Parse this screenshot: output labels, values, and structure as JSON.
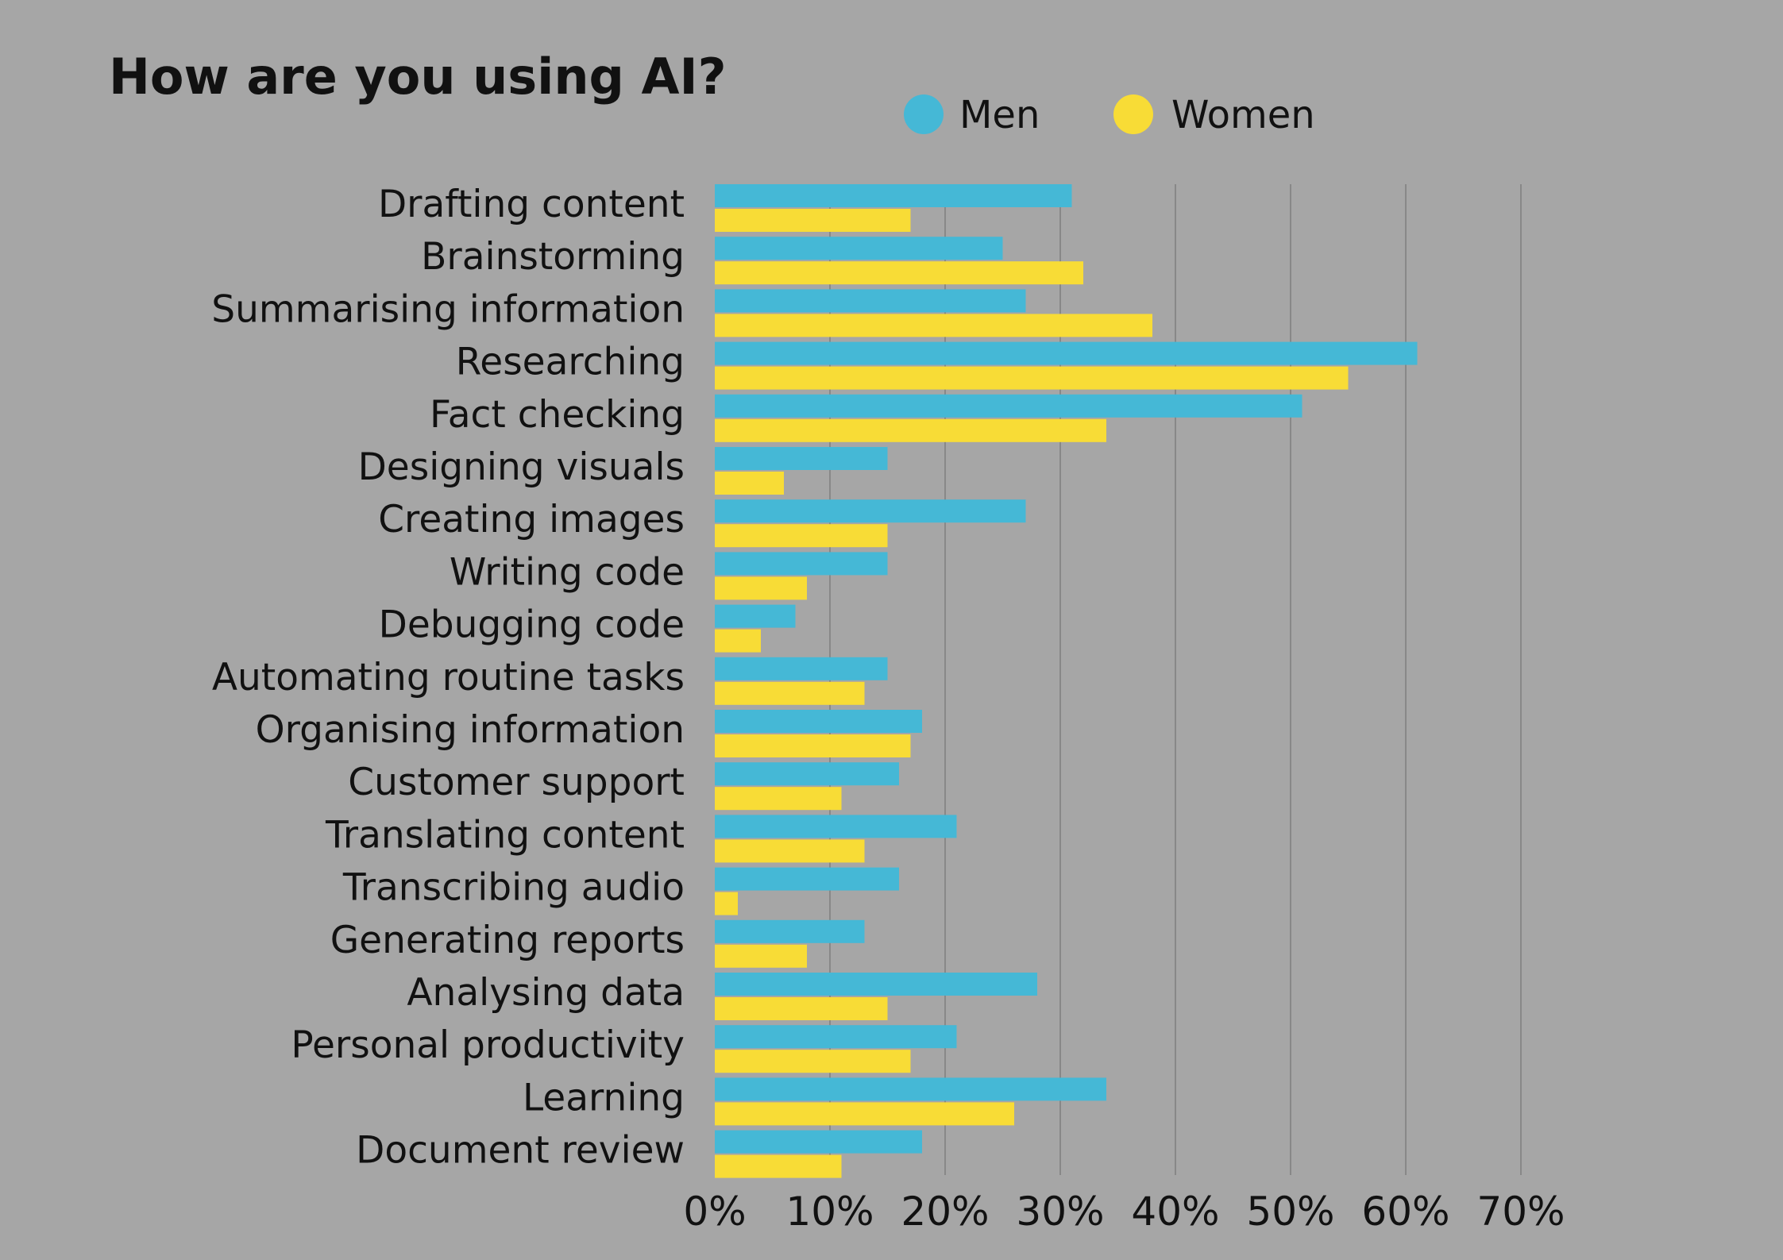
{
  "chart_data": {
    "type": "bar",
    "orientation": "horizontal",
    "title": "How are you using AI?",
    "categories": [
      "Drafting content",
      "Brainstorming",
      "Summarising information",
      "Researching",
      "Fact checking",
      "Designing visuals",
      "Creating images",
      "Writing code",
      "Debugging code",
      "Automating routine tasks",
      "Organising information",
      "Customer support",
      "Translating content",
      "Transcribing audio",
      "Generating reports",
      "Analysing data",
      "Personal productivity",
      "Learning",
      "Document review"
    ],
    "series": [
      {
        "name": "Men",
        "color": "#45b8d6",
        "values": [
          31,
          25,
          27,
          61,
          51,
          15,
          27,
          15,
          7,
          15,
          18,
          16,
          21,
          16,
          13,
          28,
          21,
          34,
          18
        ]
      },
      {
        "name": "Women",
        "color": "#f8dc36",
        "values": [
          17,
          32,
          38,
          55,
          34,
          6,
          15,
          8,
          4,
          13,
          17,
          11,
          13,
          2,
          8,
          15,
          17,
          26,
          11
        ]
      }
    ],
    "xlim": [
      0,
      70
    ],
    "xticks": [
      "0%",
      "10%",
      "20%",
      "30%",
      "40%",
      "50%",
      "60%",
      "70%"
    ],
    "xlabel": "",
    "ylabel": "",
    "grid": "vertical",
    "legend": "top-center"
  }
}
